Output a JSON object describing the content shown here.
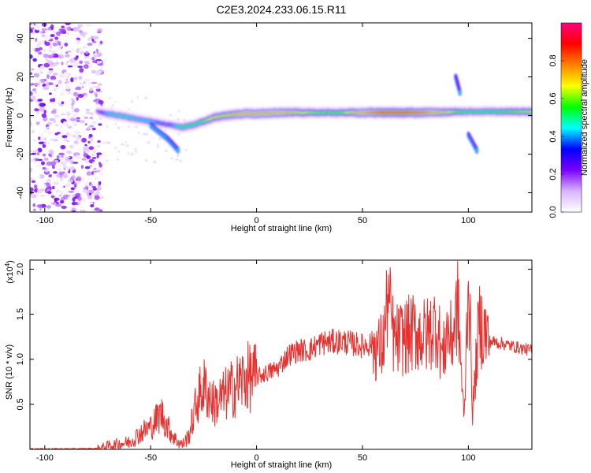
{
  "page": {
    "title": "C2E3.2024.233.06.15.R11"
  },
  "chart_data": [
    {
      "type": "heatmap",
      "title": "C2E3.2024.233.06.15.R11",
      "xlabel": "Height of straight line (km)",
      "ylabel": "Frequency (Hz)",
      "xlim": [
        -107,
        130
      ],
      "ylim": [
        -50,
        48
      ],
      "x_ticks": [
        -100,
        -50,
        0,
        50,
        100
      ],
      "y_ticks": [
        -40,
        -20,
        0,
        20,
        40
      ],
      "colorbar": {
        "label": "Normalized spectral amplitude",
        "range": [
          0,
          1
        ],
        "ticks": [
          0.0,
          0.2,
          0.4,
          0.6,
          0.8
        ],
        "colors": [
          "#ffffff",
          "#d9b3ff",
          "#7a00ff",
          "#0000ff",
          "#00ffff",
          "#00ff00",
          "#ffff00",
          "#ff8000",
          "#ff0000",
          "#ff0080"
        ]
      },
      "noise_region_x": [
        -107,
        -73
      ],
      "ridge": {
        "x": [
          -75,
          -70,
          -65,
          -60,
          -55,
          -50,
          -45,
          -40,
          -35,
          -30,
          -25,
          -20,
          -15,
          -10,
          -5,
          0,
          10,
          20,
          30,
          40,
          50,
          60,
          70,
          80,
          90,
          95,
          100,
          110,
          120,
          130
        ],
        "y": [
          2,
          1,
          0,
          -1,
          -2,
          -3,
          -4,
          -5,
          -6,
          -5,
          -3,
          -1,
          0,
          0.5,
          1,
          1,
          1.5,
          1.5,
          1.5,
          1.5,
          1.5,
          1.5,
          1.5,
          1.5,
          1.8,
          2,
          2,
          2,
          2,
          2
        ],
        "amplitude": [
          0.3,
          0.45,
          0.5,
          0.5,
          0.45,
          0.45,
          0.4,
          0.4,
          0.55,
          0.55,
          0.6,
          0.7,
          0.7,
          0.75,
          0.8,
          0.8,
          0.8,
          0.7,
          0.6,
          0.6,
          0.8,
          0.9,
          0.9,
          0.85,
          0.7,
          0.6,
          0.55,
          0.55,
          0.6,
          0.65
        ]
      },
      "branches": [
        {
          "x": [
            -50,
            -42,
            -37
          ],
          "y": [
            -5,
            -12,
            -18
          ]
        },
        {
          "x": [
            94,
            96
          ],
          "y": [
            20,
            12
          ]
        },
        {
          "x": [
            100,
            104
          ],
          "y": [
            -10,
            -18
          ]
        }
      ]
    },
    {
      "type": "line",
      "xlabel": "Height of straight line (km)",
      "ylabel": "SNR (10 * v/v)",
      "y_multiplier": "(x10",
      "y_multiplier_exp": "4",
      "y_multiplier_close": ")",
      "xlim": [
        -107,
        130
      ],
      "ylim": [
        0,
        21000
      ],
      "x_ticks": [
        -100,
        -50,
        0,
        50,
        100
      ],
      "y_ticks": [
        5000,
        10000,
        15000,
        20000
      ],
      "y_tick_labels": [
        "0.5",
        "1.0",
        "1.5",
        "2.0"
      ],
      "line_color": "#e8312f",
      "x": [
        -107,
        -90,
        -75,
        -70,
        -60,
        -55,
        -50,
        -45,
        -42,
        -38,
        -35,
        -32,
        -28,
        -25,
        -20,
        -15,
        -10,
        -5,
        0,
        5,
        10,
        15,
        20,
        25,
        30,
        40,
        50,
        55,
        58,
        60,
        62,
        65,
        70,
        75,
        80,
        85,
        88,
        90,
        92,
        95,
        98,
        100,
        102,
        105,
        108,
        110,
        115,
        120,
        125,
        130
      ],
      "y": [
        50,
        50,
        80,
        400,
        800,
        1800,
        2500,
        4000,
        2500,
        1000,
        500,
        1500,
        5500,
        7000,
        5000,
        6000,
        7000,
        8000,
        8000,
        8500,
        9000,
        10500,
        11000,
        11000,
        11800,
        12000,
        11500,
        11800,
        11000,
        12000,
        17000,
        12000,
        12500,
        13000,
        12500,
        14000,
        10000,
        13500,
        12000,
        16000,
        3000,
        20000,
        4000,
        14000,
        13000,
        12000,
        11800,
        11500,
        11200,
        11000
      ]
    }
  ]
}
